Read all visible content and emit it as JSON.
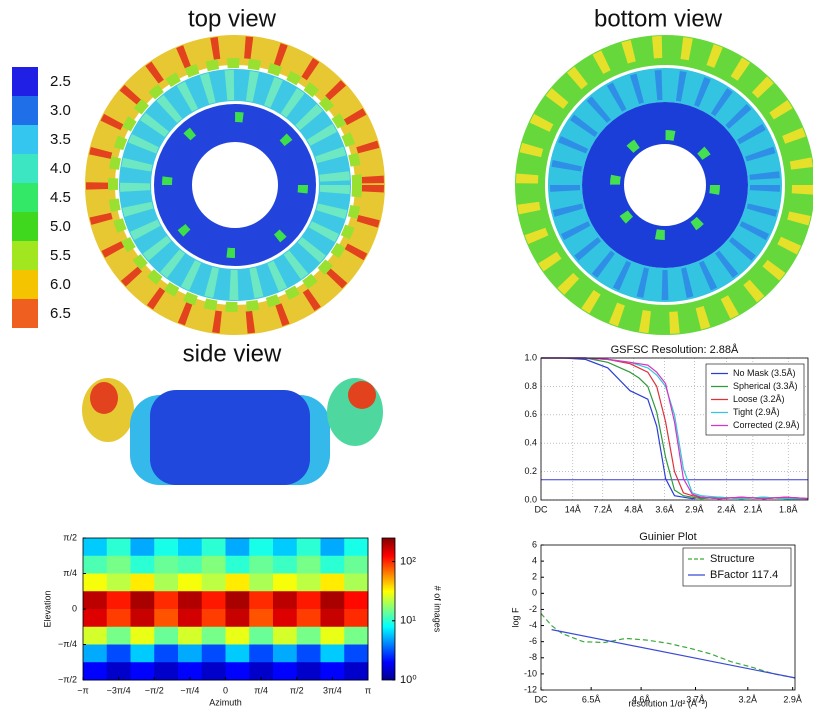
{
  "views": {
    "top": "top view",
    "bottom": "bottom view",
    "side": "side view"
  },
  "resolution_key": {
    "labels": [
      "2.5",
      "3.0",
      "3.5",
      "4.0",
      "4.5",
      "5.0",
      "5.5",
      "6.0",
      "6.5"
    ],
    "colors": [
      "#1f1fe6",
      "#1e6fe8",
      "#35c6f0",
      "#3de6c2",
      "#33e866",
      "#3fd81f",
      "#a2e61f",
      "#f5c400",
      "#ef5f1f"
    ]
  },
  "chart_data": [
    {
      "type": "heatmap",
      "xlabel": "Azimuth",
      "ylabel": "Elevation",
      "xlim": [
        -3.1416,
        3.1416
      ],
      "xticks": [
        {
          "value": -3.1416,
          "label": "−π"
        },
        {
          "value": -2.3562,
          "label": "−3π/4"
        },
        {
          "value": -1.5708,
          "label": "−π/2"
        },
        {
          "value": -0.7854,
          "label": "−π/4"
        },
        0,
        {
          "value": 0.7854,
          "label": "π/4"
        },
        {
          "value": 1.5708,
          "label": "π/2"
        },
        {
          "value": 2.3562,
          "label": "3π/4"
        },
        {
          "value": 3.1416,
          "label": "π"
        }
      ],
      "ylim": [
        -1.5708,
        1.5708
      ],
      "yticks": [
        {
          "value": -1.5708,
          "label": "−π/2"
        },
        {
          "value": -0.7854,
          "label": "−π/4"
        },
        0,
        {
          "value": 0.7854,
          "label": "π/4"
        },
        {
          "value": 1.5708,
          "label": "π/2"
        }
      ],
      "z": [
        [
          6,
          10,
          5,
          9,
          6,
          10,
          5,
          9,
          6,
          10,
          5,
          9
        ],
        [
          12,
          15,
          10,
          14,
          12,
          16,
          10,
          14,
          11,
          15,
          10,
          14
        ],
        [
          30,
          22,
          35,
          20,
          30,
          22,
          35,
          20,
          30,
          22,
          35,
          20
        ],
        [
          180,
          110,
          200,
          100,
          190,
          110,
          200,
          100,
          180,
          110,
          200,
          120
        ],
        [
          150,
          90,
          170,
          80,
          160,
          90,
          170,
          80,
          150,
          90,
          170,
          100
        ],
        [
          25,
          15,
          28,
          14,
          25,
          15,
          28,
          14,
          25,
          15,
          28,
          15
        ],
        [
          5,
          3,
          6,
          3,
          5,
          3,
          6,
          3,
          5,
          3,
          6,
          3
        ],
        [
          2,
          1.5,
          2,
          1.5,
          2,
          1.5,
          2,
          1.5,
          2,
          1.5,
          2,
          1.5
        ]
      ],
      "colorbar": {
        "label": "# of images",
        "scale": "log",
        "lim": [
          1,
          250
        ],
        "ticks": [
          {
            "value": 1,
            "label": "10⁰"
          },
          {
            "value": 10,
            "label": "10¹"
          },
          {
            "value": 100,
            "label": "10²"
          }
        ]
      }
    },
    {
      "type": "line",
      "title": "GSFSC Resolution: 2.88Å",
      "x": [
        0,
        0.05,
        0.1,
        0.15,
        0.2,
        0.22,
        0.24,
        0.26,
        0.28,
        0.3,
        0.32,
        0.34,
        0.36,
        0.4,
        0.45,
        0.5,
        0.55,
        0.6
      ],
      "xlim": [
        0,
        0.6
      ],
      "xticks": [
        {
          "value": 0,
          "label": "DC"
        },
        {
          "value": 0.0714,
          "label": "14Å"
        },
        {
          "value": 0.1389,
          "label": "7.2Å"
        },
        {
          "value": 0.2083,
          "label": "4.8Å"
        },
        {
          "value": 0.2778,
          "label": "3.6Å"
        },
        {
          "value": 0.3448,
          "label": "2.9Å"
        },
        {
          "value": 0.4167,
          "label": "2.4Å"
        },
        {
          "value": 0.4762,
          "label": "2.1Å"
        },
        {
          "value": 0.5556,
          "label": "1.8Å"
        }
      ],
      "ylim": [
        0,
        1
      ],
      "yticks": [
        {
          "value": 0,
          "label": "0.0"
        },
        0.2,
        0.4,
        0.6,
        0.8,
        {
          "value": 1,
          "label": "1.0"
        }
      ],
      "grid": true,
      "threshold": {
        "value": 0.143,
        "color": "#3a3ad6"
      },
      "legend": "upper right",
      "series": [
        {
          "name": "No Mask (3.5Å)",
          "color": "#2b3fd6",
          "values": [
            1,
            1,
            0.99,
            0.93,
            0.77,
            0.74,
            0.71,
            0.52,
            0.15,
            0.03,
            0.02,
            0.01,
            0.02,
            0.01,
            0.02,
            0.01,
            0.02,
            0.01
          ]
        },
        {
          "name": "Spherical (3.3Å)",
          "color": "#2e9a3a",
          "values": [
            1,
            1,
            1,
            0.97,
            0.9,
            0.86,
            0.8,
            0.62,
            0.3,
            0.07,
            0.03,
            0.02,
            0.01,
            0.02,
            0.01,
            0.02,
            0.01,
            0.01
          ]
        },
        {
          "name": "Loose (3.2Å)",
          "color": "#e0303a",
          "values": [
            1,
            1,
            1,
            0.99,
            0.96,
            0.93,
            0.9,
            0.8,
            0.55,
            0.2,
            0.05,
            0.03,
            0.02,
            0.01,
            0.02,
            0.01,
            0.02,
            0.01
          ]
        },
        {
          "name": "Tight (2.9Å)",
          "color": "#33c6d6",
          "values": [
            1,
            1,
            1,
            0.99,
            0.97,
            0.95,
            0.93,
            0.88,
            0.8,
            0.6,
            0.22,
            0.05,
            0.03,
            0.02,
            0.01,
            0.02,
            0.01,
            0.01
          ]
        },
        {
          "name": "Corrected (2.9Å)",
          "color": "#d633c6",
          "values": [
            1,
            1,
            1,
            0.99,
            0.97,
            0.96,
            0.95,
            0.9,
            0.82,
            0.55,
            0.15,
            0.04,
            0.02,
            0.01,
            0.02,
            0.01,
            0.02,
            0.01
          ]
        }
      ]
    },
    {
      "type": "line",
      "title": "Guinier Plot",
      "xlabel": "resolution 1/d² (Å⁻²)",
      "ylabel": "log F",
      "xlim": [
        0,
        0.12
      ],
      "xticks": [
        {
          "value": 0,
          "label": "DC"
        },
        {
          "value": 0.0237,
          "label": "6.5Å"
        },
        {
          "value": 0.0473,
          "label": "4.6Å"
        },
        {
          "value": 0.073,
          "label": "3.7Å"
        },
        {
          "value": 0.0977,
          "label": "3.2Å"
        },
        {
          "value": 0.1189,
          "label": "2.9Å"
        }
      ],
      "ylim": [
        -12,
        6
      ],
      "yticks": [
        -12,
        -10,
        -8,
        -6,
        -4,
        -2,
        0,
        2,
        4,
        6
      ],
      "legend": "upper right",
      "series": [
        {
          "name": "Structure",
          "color": "#3aaa3a",
          "dash": true,
          "x": [
            0,
            0.005,
            0.01,
            0.02,
            0.03,
            0.04,
            0.05,
            0.06,
            0.07,
            0.08,
            0.09,
            0.1,
            0.11,
            0.12
          ],
          "values": [
            -2.5,
            -4,
            -5,
            -6,
            -6.1,
            -5.6,
            -5.8,
            -6.2,
            -6.8,
            -7.5,
            -8.5,
            -9.2,
            -10,
            -10.5
          ]
        },
        {
          "name": "BFactor 117.4",
          "color": "#3a4ad6",
          "x": [
            0.005,
            0.12
          ],
          "values": [
            -4.5,
            -10.5
          ]
        }
      ]
    }
  ]
}
